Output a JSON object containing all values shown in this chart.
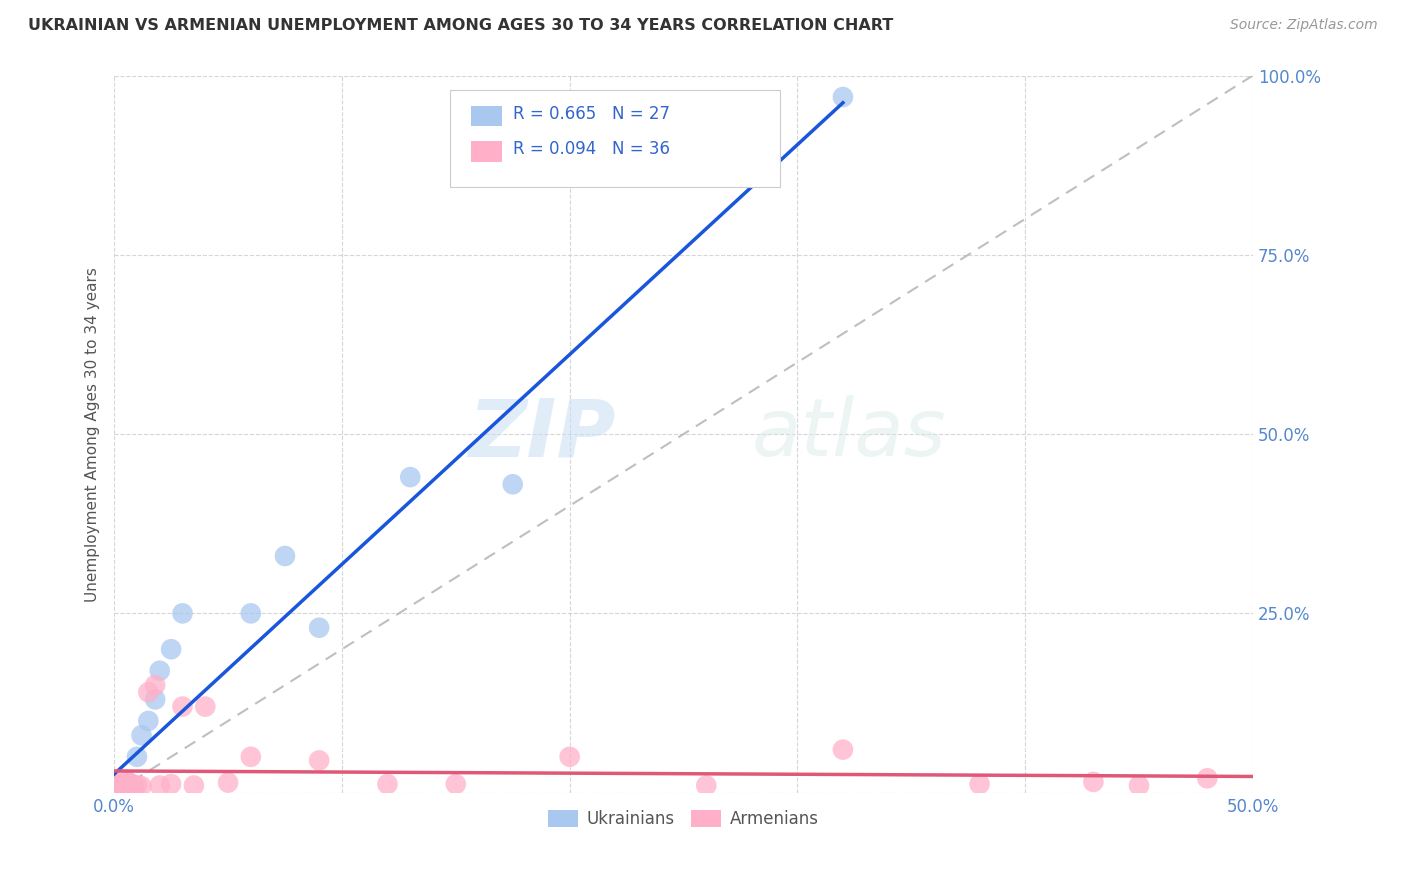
{
  "title": "UKRAINIAN VS ARMENIAN UNEMPLOYMENT AMONG AGES 30 TO 34 YEARS CORRELATION CHART",
  "source": "Source: ZipAtlas.com",
  "ylabel": "Unemployment Among Ages 30 to 34 years",
  "xlim": [
    0.0,
    0.5
  ],
  "ylim": [
    0.0,
    1.0
  ],
  "xtick_positions": [
    0.0,
    0.1,
    0.2,
    0.3,
    0.4,
    0.5
  ],
  "xticklabels": [
    "0.0%",
    "",
    "",
    "",
    "",
    "50.0%"
  ],
  "ytick_positions": [
    0.0,
    0.25,
    0.5,
    0.75,
    1.0
  ],
  "yticklabels": [
    "",
    "25.0%",
    "50.0%",
    "75.0%",
    "100.0%"
  ],
  "ukrainian_R": 0.665,
  "ukrainian_N": 27,
  "armenian_R": 0.094,
  "armenian_N": 36,
  "ukrainian_color": "#a8c8f0",
  "armenian_color": "#ffb0c8",
  "ukrainian_line_color": "#1a56db",
  "armenian_line_color": "#e05878",
  "diagonal_color": "#b8b8b8",
  "watermark_zip": "ZIP",
  "watermark_atlas": "atlas",
  "tick_color": "#5588cc",
  "ylabel_color": "#555555",
  "title_color": "#333333",
  "source_color": "#999999",
  "legend_color": "#3366cc",
  "ukrainian_x": [
    0.001,
    0.002,
    0.002,
    0.003,
    0.003,
    0.003,
    0.004,
    0.004,
    0.005,
    0.005,
    0.006,
    0.006,
    0.007,
    0.008,
    0.01,
    0.012,
    0.015,
    0.018,
    0.02,
    0.025,
    0.03,
    0.06,
    0.075,
    0.09,
    0.13,
    0.175,
    0.32
  ],
  "ukrainian_y": [
    0.005,
    0.003,
    0.007,
    0.004,
    0.008,
    0.01,
    0.006,
    0.012,
    0.004,
    0.008,
    0.006,
    0.015,
    0.01,
    0.01,
    0.05,
    0.08,
    0.1,
    0.13,
    0.17,
    0.2,
    0.25,
    0.25,
    0.33,
    0.23,
    0.44,
    0.43,
    0.97
  ],
  "armenian_x": [
    0.001,
    0.001,
    0.002,
    0.002,
    0.003,
    0.003,
    0.004,
    0.004,
    0.005,
    0.005,
    0.006,
    0.006,
    0.007,
    0.008,
    0.009,
    0.01,
    0.012,
    0.015,
    0.018,
    0.02,
    0.025,
    0.03,
    0.035,
    0.04,
    0.05,
    0.06,
    0.09,
    0.12,
    0.15,
    0.2,
    0.26,
    0.32,
    0.38,
    0.43,
    0.45,
    0.48
  ],
  "armenian_y": [
    0.005,
    0.01,
    0.008,
    0.012,
    0.006,
    0.01,
    0.008,
    0.015,
    0.007,
    0.012,
    0.01,
    0.015,
    0.01,
    0.012,
    0.008,
    0.01,
    0.009,
    0.14,
    0.15,
    0.01,
    0.012,
    0.12,
    0.01,
    0.12,
    0.014,
    0.05,
    0.045,
    0.012,
    0.012,
    0.05,
    0.01,
    0.06,
    0.012,
    0.015,
    0.01,
    0.02
  ]
}
